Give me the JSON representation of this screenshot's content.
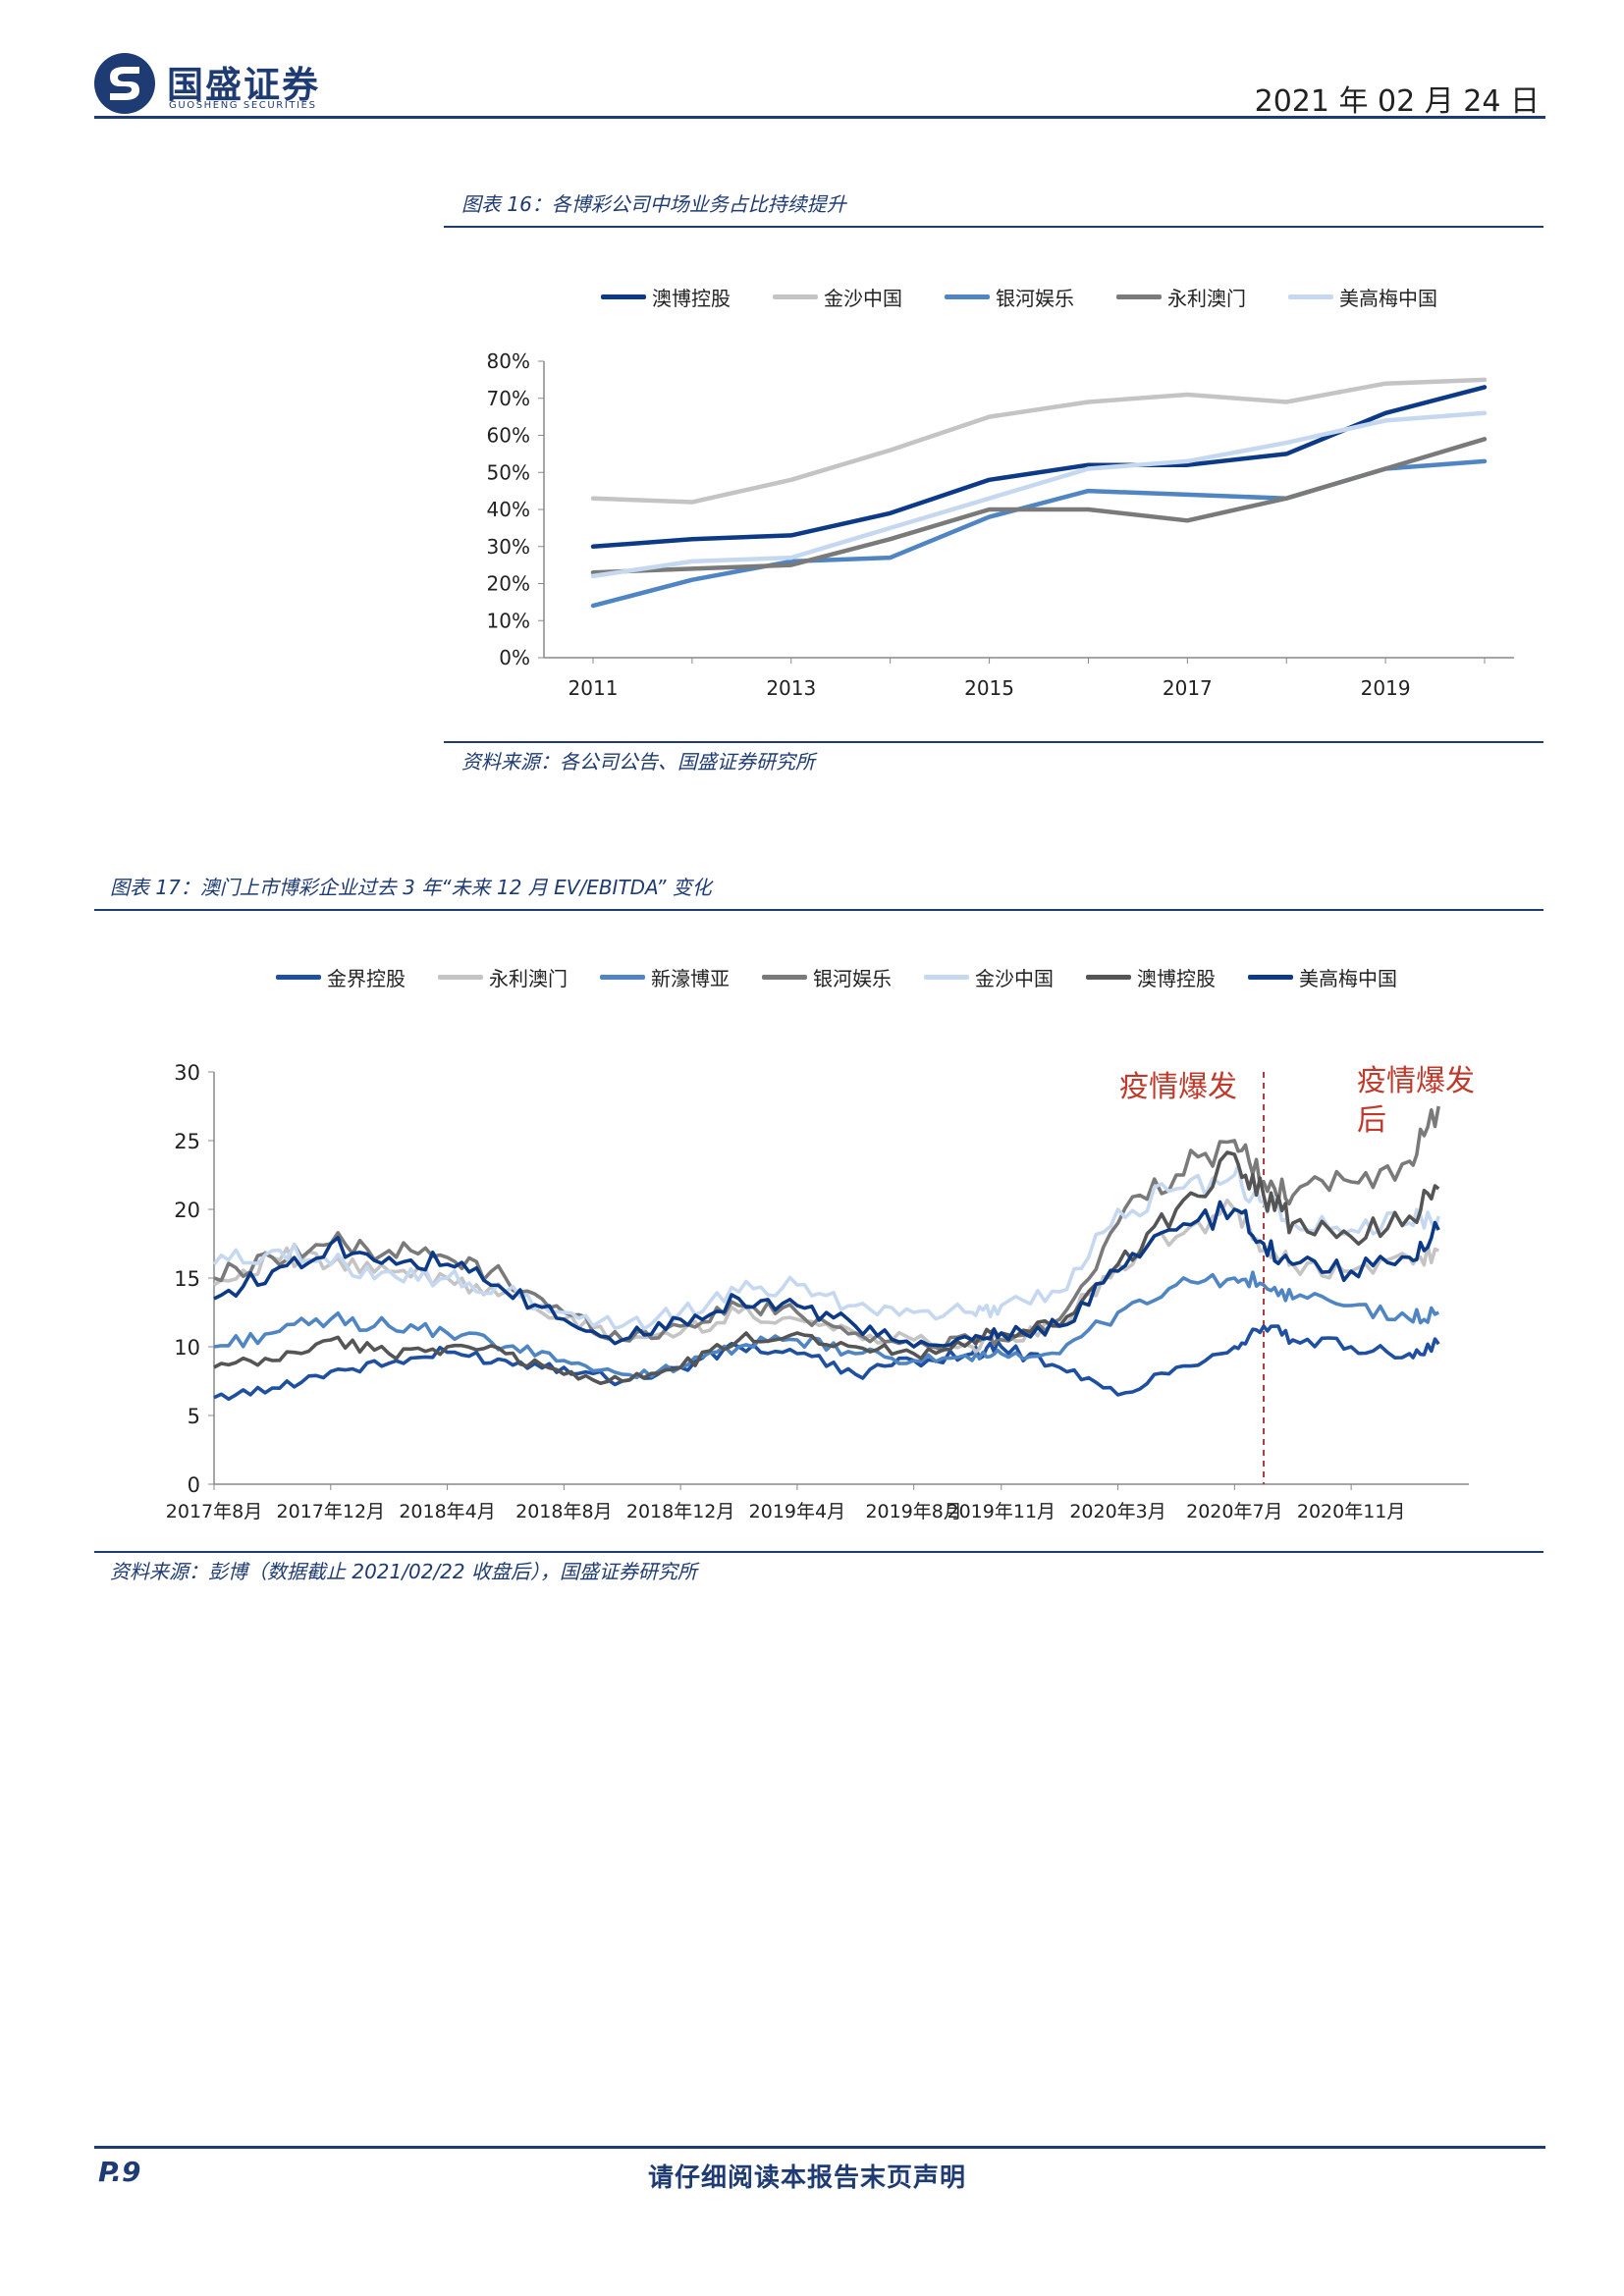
{
  "header": {
    "brand": "国盛证券",
    "brand_en": "GUOSHENG SECURITIES",
    "date": "2021 年 02 月 24 日"
  },
  "figure16": {
    "caption": "图表 16：各博彩公司中场业务占比持续提升",
    "source": "资料来源：各公司公告、国盛证券研究所"
  },
  "figure17": {
    "caption": "图表 17：澳门上市博彩企业过去 3 年“未来 12 月 EV/EBITDA” 变化",
    "source": "资料来源：彭博（数据截止 2021/02/22 收盘后），国盛证券研究所",
    "annotation_before": "疫情爆发",
    "annotation_after_line1": "疫情爆发",
    "annotation_after_line2": "后"
  },
  "footer": {
    "page": "P.9",
    "note": "请仔细阅读本报告末页声明"
  },
  "chart_data": [
    {
      "type": "line",
      "x": [
        2011,
        2012,
        2013,
        2014,
        2015,
        2016,
        2017,
        2018,
        2019,
        2020
      ],
      "xticks": [
        "2011",
        "2013",
        "2015",
        "2017",
        "2019"
      ],
      "yticks": [
        "0%",
        "10%",
        "20%",
        "30%",
        "40%",
        "50%",
        "60%",
        "70%",
        "80%"
      ],
      "ylim": [
        0,
        0.8
      ],
      "legend_position": "top",
      "series": [
        {
          "name": "澳博控股",
          "color": "#0d3a87",
          "values": [
            0.3,
            0.32,
            0.33,
            0.39,
            0.48,
            0.52,
            0.52,
            0.55,
            0.66,
            0.73
          ]
        },
        {
          "name": "金沙中国",
          "color": "#c4c4c4",
          "values": [
            0.43,
            0.42,
            0.48,
            0.56,
            0.65,
            0.69,
            0.71,
            0.69,
            0.74,
            0.75
          ]
        },
        {
          "name": "银河娱乐",
          "color": "#5085c4",
          "values": [
            0.14,
            0.21,
            0.26,
            0.27,
            0.38,
            0.45,
            0.44,
            0.43,
            0.51,
            0.53
          ]
        },
        {
          "name": "永利澳门",
          "color": "#7a7a7a",
          "values": [
            0.23,
            0.24,
            0.25,
            0.32,
            0.4,
            0.4,
            0.37,
            0.43,
            0.51,
            0.59
          ]
        },
        {
          "name": "美高梅中国",
          "color": "#c6d8f0",
          "values": [
            0.22,
            0.26,
            0.27,
            0.35,
            0.43,
            0.51,
            0.53,
            0.58,
            0.64,
            0.66
          ]
        }
      ]
    },
    {
      "type": "line",
      "x": [
        "2017-08",
        "2017-10",
        "2017-12",
        "2018-02",
        "2018-04",
        "2018-06",
        "2018-08",
        "2018-10",
        "2018-12",
        "2019-02",
        "2019-04",
        "2019-06",
        "2019-08",
        "2019-10",
        "2019-11",
        "2020-01",
        "2020-03",
        "2020-05",
        "2020-07",
        "2020-08",
        "2020-09",
        "2020-11",
        "2021-01",
        "2021-02"
      ],
      "xticks": [
        "2017年8月",
        "2017年12月",
        "2018年4月",
        "2018年8月",
        "2018年12月",
        "2019年4月",
        "2019年8月",
        "2019年11月",
        "2020年3月",
        "2020年7月",
        "2020年11月"
      ],
      "yticks": [
        "0",
        "5",
        "10",
        "15",
        "20",
        "25",
        "30"
      ],
      "ylim": [
        0,
        30
      ],
      "legend_position": "top",
      "series": [
        {
          "name": "金界控股",
          "color": "#1f4fa0",
          "values": [
            6.3,
            7.0,
            8.2,
            8.8,
            9.6,
            9.0,
            8.5,
            7.5,
            8.5,
            10.0,
            9.5,
            8.0,
            9.0,
            9.5,
            10.0,
            8.5,
            6.5,
            8.5,
            10.0,
            11.5,
            10.5,
            10.0,
            9.5,
            10.2
          ]
        },
        {
          "name": "永利澳门",
          "color": "#c4c4c4",
          "values": [
            14.5,
            16.5,
            16.0,
            15.5,
            15.0,
            14.0,
            12.0,
            10.5,
            11.0,
            12.5,
            12.0,
            11.0,
            10.5,
            10.0,
            10.5,
            11.5,
            16.0,
            18.0,
            20.0,
            17.0,
            16.0,
            15.5,
            16.5,
            17.0
          ]
        },
        {
          "name": "新濠博亚",
          "color": "#5085c4",
          "values": [
            10.0,
            11.0,
            12.0,
            11.5,
            11.0,
            10.0,
            9.0,
            8.0,
            8.5,
            10.0,
            10.5,
            9.5,
            9.0,
            9.0,
            9.5,
            9.5,
            12.5,
            14.5,
            15.0,
            14.5,
            13.5,
            13.0,
            12.0,
            12.5
          ]
        },
        {
          "name": "银河娱乐",
          "color": "#7a7a7a",
          "values": [
            15.0,
            16.5,
            17.5,
            17.0,
            16.5,
            15.0,
            12.5,
            10.5,
            11.5,
            13.0,
            12.5,
            11.0,
            10.0,
            10.5,
            10.5,
            12.0,
            19.0,
            22.5,
            25.0,
            22.0,
            21.0,
            22.0,
            23.5,
            27.5
          ]
        },
        {
          "name": "金沙中国",
          "color": "#c6d8f0",
          "values": [
            16.0,
            17.0,
            16.0,
            15.5,
            15.0,
            14.0,
            12.5,
            11.5,
            12.5,
            14.0,
            14.5,
            13.0,
            12.5,
            12.5,
            13.0,
            14.0,
            20.0,
            21.5,
            22.5,
            20.5,
            19.0,
            18.5,
            19.0,
            19.5
          ]
        },
        {
          "name": "澳博控股",
          "color": "#555555",
          "values": [
            8.5,
            9.0,
            10.5,
            9.5,
            10.0,
            9.5,
            8.0,
            7.5,
            8.5,
            10.5,
            11.0,
            10.0,
            9.5,
            10.5,
            11.0,
            11.5,
            16.0,
            20.0,
            24.0,
            21.0,
            19.0,
            18.0,
            19.5,
            21.5
          ]
        },
        {
          "name": "美高梅中国",
          "color": "#0d3a87",
          "values": [
            13.5,
            15.5,
            17.5,
            16.5,
            16.0,
            14.0,
            12.0,
            10.5,
            12.0,
            13.5,
            13.0,
            11.5,
            10.0,
            10.5,
            11.0,
            11.5,
            15.5,
            18.5,
            20.0,
            17.5,
            16.0,
            15.5,
            16.5,
            18.5
          ]
        }
      ],
      "annotations": [
        {
          "text": "疫情爆发",
          "color": "#c0392b"
        },
        {
          "text": "疫情爆发后",
          "color": "#c0392b"
        }
      ]
    }
  ]
}
